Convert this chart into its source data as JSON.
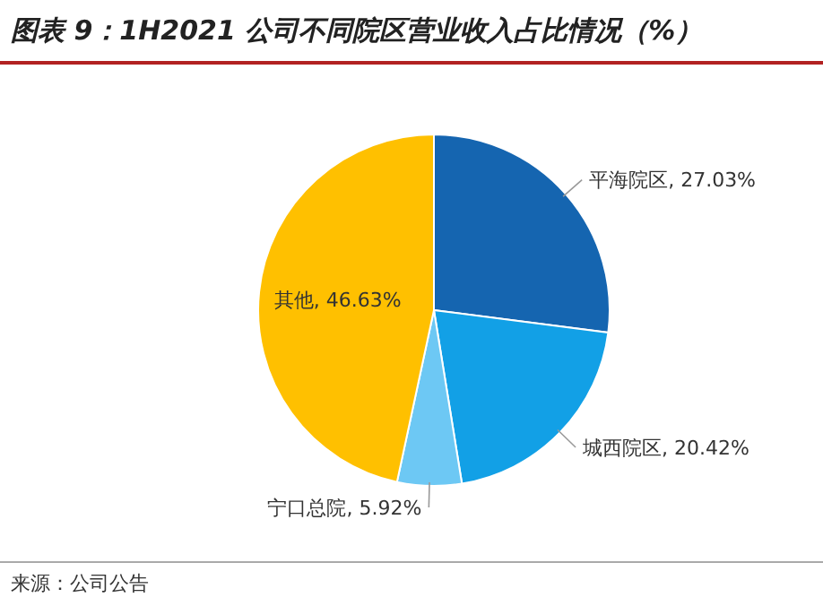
{
  "chart_data": {
    "type": "pie",
    "title": "图表 9：1H2021 公司不同院区营业收入占比情况（%）",
    "annotations": [
      "来源：公司公告"
    ],
    "categories": [
      "平海院区",
      "城西院区",
      "宁口总院",
      "其他"
    ],
    "values": [
      27.03,
      20.42,
      5.92,
      46.63
    ],
    "colors": [
      "#1565b0",
      "#12a0e6",
      "#6dc8f4",
      "#ffc000"
    ],
    "value_labels": [
      "27.03%",
      "20.42%",
      "5.92%",
      "46.63%"
    ],
    "legend": false
  }
}
